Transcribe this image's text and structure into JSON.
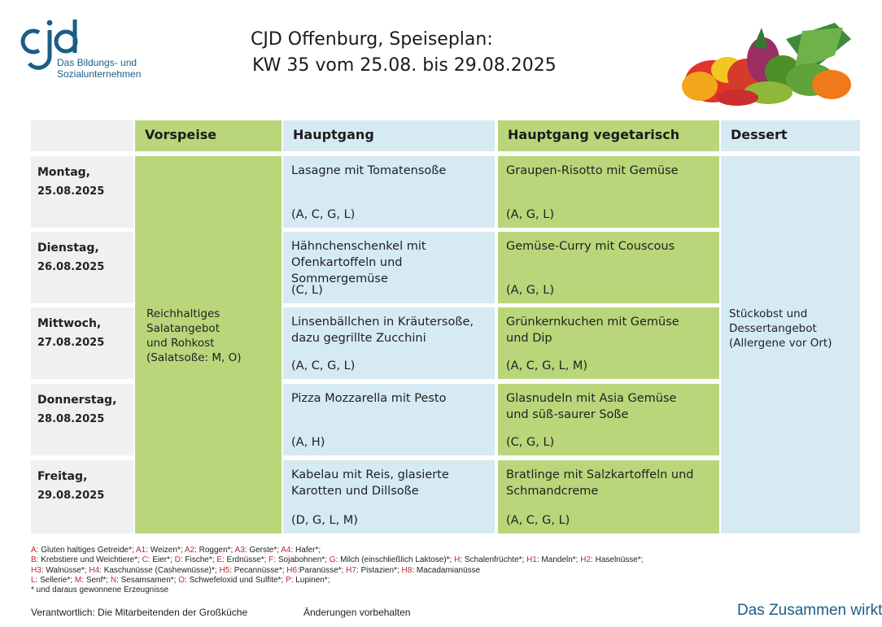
{
  "logo": {
    "mark": "cjd",
    "subtitle_line1": "Das Bildungs- und",
    "subtitle_line2": "Sozialunternehmen",
    "color": "#1a5d86"
  },
  "title": {
    "line1": "CJD Offenburg, Speiseplan:",
    "line2": "KW 35 vom 25.08.  bis 29.08.2025"
  },
  "image": {
    "icon": "vegetables-image"
  },
  "headers": {
    "vorspeise": "Vorspeise",
    "hauptgang": "Hauptgang",
    "hauptgang_veg": "Hauptgang vegetarisch",
    "dessert": "Dessert"
  },
  "vorspeise": {
    "line1": "Reichhaltiges",
    "line2": "Salatangebot",
    "line3": "und Rohkost",
    "line4": "(Salatsoße: M, O)"
  },
  "dessert": {
    "line1": "Stückobst und",
    "line2": "Dessertangebot",
    "line3": "(Allergene vor Ort)"
  },
  "days": [
    {
      "name": "Montag,",
      "date": "25.08.2025",
      "main": [
        "Lasagne mit Tomatensoße"
      ],
      "main_allergens": "(A, C, G, L)",
      "veg": [
        "Graupen-Risotto mit Gemüse"
      ],
      "veg_allergens": "(A, G, L)"
    },
    {
      "name": "Dienstag,",
      "date": "26.08.2025",
      "main": [
        "Hähnchenschenkel mit",
        "Ofenkartoffeln und",
        "Sommergemüse"
      ],
      "main_allergens": "(C, L)",
      "veg": [
        "Gemüse-Curry mit Couscous"
      ],
      "veg_allergens": "(A, G, L)"
    },
    {
      "name": "Mittwoch,",
      "date": "27.08.2025",
      "main": [
        "Linsenbällchen in Kräutersoße,",
        "dazu gegrillte Zucchini"
      ],
      "main_allergens": "(A, C, G, L)",
      "veg": [
        "Grünkernkuchen mit Gemüse",
        "und Dip"
      ],
      "veg_allergens": "(A, C, G, L, M)"
    },
    {
      "name": "Donnerstag,",
      "date": "28.08.2025",
      "main": [
        "Pizza Mozzarella mit Pesto"
      ],
      "main_allergens": "(A, H)",
      "veg": [
        "Glasnudeln mit Asia Gemüse",
        "und süß-saurer Soße"
      ],
      "veg_allergens": "(C, G, L)"
    },
    {
      "name": "Freitag,",
      "date": "29.08.2025",
      "main": [
        "Kabelau mit Reis, glasierte",
        "Karotten und Dillsoße"
      ],
      "main_allergens": "(D, G, L, M)",
      "veg": [
        "Bratlinge mit Salzkartoffeln und",
        "Schmandcreme"
      ],
      "veg_allergens": "(A, C, G, L)"
    }
  ],
  "legend": {
    "line1": [
      {
        "k": "A",
        "t": ": Gluten haltiges Getreide*; "
      },
      {
        "k": "A1",
        "t": ": Weizen*; "
      },
      {
        "k": "A2",
        "t": ": Roggen*; "
      },
      {
        "k": "A3",
        "t": ": Gerste*; "
      },
      {
        "k": "A4",
        "t": ": Hafer*;"
      }
    ],
    "line2": [
      {
        "k": "B",
        "t": ": Krebstiere und Weichtiere*; "
      },
      {
        "k": "C",
        "t": ": Eier*; "
      },
      {
        "k": "D",
        "t": ": Fische*; "
      },
      {
        "k": "E",
        "t": ": Erdnüsse*; "
      },
      {
        "k": "F",
        "t": ": Sojabohnen*; "
      },
      {
        "k": "G",
        "t": ": Milch (einschließlich Laktose)*; "
      },
      {
        "k": "H",
        "t": ": Schalenfrüchte*; "
      },
      {
        "k": "H1",
        "t": ": Mandeln*; "
      },
      {
        "k": "H2",
        "t": ": Haselnüsse*;"
      }
    ],
    "line3": [
      {
        "k": "H3",
        "t": ": Walnüsse*; "
      },
      {
        "k": "H4",
        "t": ": Kaschunüsse (Cashewnüsse)*; "
      },
      {
        "k": "H5",
        "t": ": Pecannüsse*; "
      },
      {
        "k": "H6",
        "t": ":Paranüsse*; "
      },
      {
        "k": "H7",
        "t": ": Pistazien*; "
      },
      {
        "k": "H8",
        "t": ": Macadamianüsse"
      }
    ],
    "line4": [
      {
        "k": "L",
        "t": ": Sellerie*; "
      },
      {
        "k": "M",
        "t": ": Senf*; "
      },
      {
        "k": "N",
        "t": ": Sesamsamen*; "
      },
      {
        "k": "O",
        "t": ": Schwefeloxid und Sulfite*; "
      },
      {
        "k": "P",
        "t": ": Lupinen*;"
      }
    ],
    "line5": "* und daraus gewonnene Erzeugnisse"
  },
  "footer": {
    "responsible": "Verantwortlich: Die Mitarbeitenden der Großküche",
    "changes": "Änderungen vorbehalten",
    "slogan": "Das Zusammen wirkt."
  },
  "colors": {
    "green": "#b9d67a",
    "blue": "#d6eaf4",
    "grey": "#f0f0f0",
    "legend_key": "#c0282d",
    "brand": "#1a5d86"
  }
}
